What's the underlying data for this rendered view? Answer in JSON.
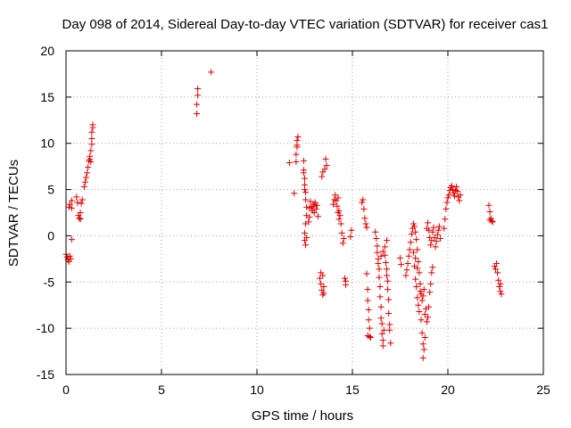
{
  "chart_data": {
    "type": "scatter",
    "title": "Day 098 of 2014, Sidereal Day-to-day VTEC variation (SDTVAR) for receiver cas1",
    "xlabel": "GPS time / hours",
    "ylabel": "SDTVAR / TECUs",
    "xlim": [
      0,
      25
    ],
    "ylim": [
      -15,
      20
    ],
    "xticks": [
      0,
      5,
      10,
      15,
      20,
      25
    ],
    "xtick_labels": [
      "0",
      "5",
      "10",
      "15",
      "20",
      "25"
    ],
    "yticks": [
      -15,
      -10,
      -5,
      0,
      5,
      10,
      15,
      20
    ],
    "ytick_labels": [
      "-15",
      "-10",
      "-5",
      "0",
      "5",
      "10",
      "15",
      "20"
    ],
    "grid": true,
    "marker": "+",
    "color": "#e00000",
    "series": [
      {
        "name": "cas1",
        "points": [
          [
            0.0,
            -2.0
          ],
          [
            0.05,
            -2.3
          ],
          [
            0.1,
            -2.6
          ],
          [
            0.15,
            -2.8
          ],
          [
            0.2,
            -2.2
          ],
          [
            0.25,
            -2.5
          ],
          [
            0.3,
            -0.4
          ],
          [
            0.15,
            3.1
          ],
          [
            0.2,
            3.4
          ],
          [
            0.3,
            3.0
          ],
          [
            0.3,
            3.8
          ],
          [
            0.55,
            4.2
          ],
          [
            0.6,
            3.6
          ],
          [
            0.65,
            2.2
          ],
          [
            0.7,
            1.9
          ],
          [
            0.75,
            2.5
          ],
          [
            0.8,
            3.5
          ],
          [
            0.85,
            3.9
          ],
          [
            0.75,
            1.8
          ],
          [
            0.95,
            5.3
          ],
          [
            1.0,
            5.8
          ],
          [
            1.05,
            6.3
          ],
          [
            1.1,
            6.8
          ],
          [
            1.15,
            7.4
          ],
          [
            1.2,
            8.1
          ],
          [
            1.25,
            8.6
          ],
          [
            1.3,
            9.2
          ],
          [
            1.35,
            9.9
          ],
          [
            1.35,
            10.5
          ],
          [
            1.35,
            11.2
          ],
          [
            1.4,
            11.7
          ],
          [
            1.4,
            12.0
          ],
          [
            1.25,
            8.3
          ],
          [
            1.3,
            8.0
          ],
          [
            6.85,
            13.2
          ],
          [
            6.85,
            14.2
          ],
          [
            6.9,
            15.2
          ],
          [
            6.9,
            15.9
          ],
          [
            7.6,
            17.7
          ],
          [
            11.7,
            7.9
          ],
          [
            11.95,
            4.6
          ],
          [
            12.05,
            8.0
          ],
          [
            12.05,
            8.8
          ],
          [
            12.1,
            9.6
          ],
          [
            12.1,
            10.3
          ],
          [
            12.15,
            10.7
          ],
          [
            12.1,
            9.8
          ],
          [
            12.45,
            8.1
          ],
          [
            12.45,
            7.1
          ],
          [
            12.5,
            6.2
          ],
          [
            12.5,
            5.5
          ],
          [
            12.55,
            4.7
          ],
          [
            12.55,
            3.9
          ],
          [
            12.6,
            3.1
          ],
          [
            12.6,
            2.2
          ],
          [
            12.55,
            1.3
          ],
          [
            12.5,
            0.3
          ],
          [
            12.5,
            -0.5
          ],
          [
            12.55,
            -1.0
          ],
          [
            12.45,
            6.8
          ],
          [
            12.5,
            5.0
          ],
          [
            12.6,
            -0.2
          ],
          [
            12.7,
            1.5
          ],
          [
            12.75,
            3.0
          ],
          [
            12.8,
            3.7
          ],
          [
            12.85,
            3.1
          ],
          [
            12.9,
            2.7
          ],
          [
            12.95,
            3.2
          ],
          [
            13.0,
            2.5
          ],
          [
            13.05,
            3.6
          ],
          [
            13.1,
            2.9
          ],
          [
            13.15,
            3.3
          ],
          [
            13.2,
            2.1
          ],
          [
            12.75,
            2.0
          ],
          [
            13.0,
            3.4
          ],
          [
            13.3,
            -4.6
          ],
          [
            13.35,
            -5.2
          ],
          [
            13.4,
            -5.9
          ],
          [
            13.45,
            -6.4
          ],
          [
            13.5,
            -5.5
          ],
          [
            13.35,
            -4.0
          ],
          [
            13.45,
            -4.3
          ],
          [
            13.5,
            -6.2
          ],
          [
            13.4,
            6.4
          ],
          [
            13.45,
            6.9
          ],
          [
            13.55,
            7.2
          ],
          [
            13.6,
            8.3
          ],
          [
            13.65,
            7.6
          ],
          [
            14.0,
            3.4
          ],
          [
            14.05,
            3.9
          ],
          [
            14.1,
            4.4
          ],
          [
            14.15,
            3.8
          ],
          [
            14.2,
            3.2
          ],
          [
            14.25,
            4.1
          ],
          [
            14.3,
            2.7
          ],
          [
            14.35,
            2.2
          ],
          [
            14.4,
            1.3
          ],
          [
            14.45,
            0.3
          ],
          [
            14.5,
            -0.8
          ],
          [
            14.55,
            -0.3
          ],
          [
            14.25,
            2.5
          ],
          [
            14.3,
            1.8
          ],
          [
            14.6,
            -4.6
          ],
          [
            14.65,
            -4.9
          ],
          [
            14.65,
            -5.3
          ],
          [
            14.9,
            -0.1
          ],
          [
            14.95,
            0.6
          ],
          [
            15.5,
            3.6
          ],
          [
            15.55,
            3.9
          ],
          [
            15.6,
            2.9
          ],
          [
            15.65,
            1.9
          ],
          [
            15.7,
            1.3
          ],
          [
            15.75,
            0.9
          ],
          [
            15.75,
            -4.1
          ],
          [
            15.8,
            -5.8
          ],
          [
            15.8,
            -7.0
          ],
          [
            15.85,
            -8.0
          ],
          [
            15.85,
            -9.1
          ],
          [
            15.9,
            -10.0
          ],
          [
            15.9,
            -10.9
          ],
          [
            15.95,
            -11.0
          ],
          [
            15.8,
            -10.8
          ],
          [
            16.2,
            0.4
          ],
          [
            16.25,
            -0.3
          ],
          [
            16.3,
            -1.1
          ],
          [
            16.3,
            -1.8
          ],
          [
            16.35,
            -2.5
          ],
          [
            16.4,
            -3.6
          ],
          [
            16.4,
            -4.5
          ],
          [
            16.45,
            -5.5
          ],
          [
            16.45,
            -6.6
          ],
          [
            16.5,
            -7.7
          ],
          [
            16.5,
            -8.9
          ],
          [
            16.55,
            -9.5
          ],
          [
            16.55,
            -10.6
          ],
          [
            16.6,
            -11.3
          ],
          [
            16.6,
            -11.9
          ],
          [
            16.65,
            -10.2
          ],
          [
            16.35,
            -3.0
          ],
          [
            16.5,
            -2.2
          ],
          [
            16.6,
            -1.7
          ],
          [
            16.7,
            -1.2
          ],
          [
            16.7,
            -2.1
          ],
          [
            16.75,
            -2.9
          ],
          [
            16.8,
            -3.6
          ],
          [
            16.8,
            -4.3
          ],
          [
            16.85,
            -4.9
          ],
          [
            16.85,
            -5.8
          ],
          [
            16.9,
            -6.9
          ],
          [
            16.9,
            -8.4
          ],
          [
            16.95,
            -9.6
          ],
          [
            16.95,
            -10.2
          ],
          [
            17.0,
            -11.6
          ],
          [
            16.8,
            -0.5
          ],
          [
            17.5,
            -2.4
          ],
          [
            17.55,
            -3.1
          ],
          [
            17.8,
            -4.3
          ],
          [
            17.85,
            -3.7
          ],
          [
            17.9,
            -3.0
          ],
          [
            17.95,
            -2.2
          ],
          [
            18.0,
            -1.5
          ],
          [
            18.05,
            -0.7
          ],
          [
            18.1,
            0.2
          ],
          [
            18.15,
            0.8
          ],
          [
            18.2,
            1.3
          ],
          [
            18.25,
            1.0
          ],
          [
            18.3,
            0.4
          ],
          [
            18.35,
            -0.4
          ],
          [
            18.4,
            -1.5
          ],
          [
            18.45,
            -2.8
          ],
          [
            18.5,
            -4.0
          ],
          [
            18.55,
            -5.2
          ],
          [
            18.6,
            -6.3
          ],
          [
            18.65,
            -7.0
          ],
          [
            18.7,
            -6.5
          ],
          [
            18.75,
            -5.8
          ],
          [
            18.6,
            -9.1
          ],
          [
            18.65,
            -10.5
          ],
          [
            18.7,
            -11.7
          ],
          [
            18.75,
            -12.3
          ],
          [
            18.7,
            -13.2
          ],
          [
            18.8,
            -11.0
          ],
          [
            18.8,
            -8.5
          ],
          [
            18.85,
            -7.9
          ],
          [
            18.9,
            -9.3
          ],
          [
            18.95,
            -8.8
          ],
          [
            19.0,
            -7.7
          ],
          [
            19.05,
            -6.1
          ],
          [
            19.1,
            -5.2
          ],
          [
            19.15,
            -4.0
          ],
          [
            19.2,
            -3.4
          ],
          [
            18.9,
            0.8
          ],
          [
            18.95,
            1.4
          ],
          [
            19.0,
            0.6
          ],
          [
            19.05,
            -0.2
          ],
          [
            19.1,
            -1.0
          ],
          [
            19.15,
            -0.5
          ],
          [
            19.2,
            0.4
          ],
          [
            19.25,
            0.9
          ],
          [
            19.3,
            -0.2
          ],
          [
            19.35,
            -1.2
          ],
          [
            19.4,
            -0.6
          ],
          [
            19.45,
            0.1
          ],
          [
            19.5,
            0.6
          ],
          [
            19.55,
            1.0
          ],
          [
            19.6,
            -0.3
          ],
          [
            18.2,
            -1.8
          ],
          [
            18.25,
            -3.3
          ],
          [
            18.3,
            -4.7
          ],
          [
            18.35,
            -5.5
          ],
          [
            18.4,
            -6.7
          ],
          [
            18.45,
            -7.5
          ],
          [
            18.5,
            -8.2
          ],
          [
            18.55,
            -6.0
          ],
          [
            18.4,
            -3.5
          ],
          [
            18.3,
            -2.4
          ],
          [
            19.8,
            0.8
          ],
          [
            19.85,
            1.8
          ],
          [
            19.9,
            2.9
          ],
          [
            19.95,
            3.6
          ],
          [
            20.0,
            4.1
          ],
          [
            20.05,
            4.4
          ],
          [
            20.1,
            4.9
          ],
          [
            20.15,
            5.2
          ],
          [
            20.2,
            5.4
          ],
          [
            20.25,
            5.0
          ],
          [
            20.3,
            4.6
          ],
          [
            20.35,
            4.3
          ],
          [
            20.4,
            4.9
          ],
          [
            20.45,
            5.3
          ],
          [
            20.5,
            4.8
          ],
          [
            20.55,
            4.2
          ],
          [
            20.6,
            3.8
          ],
          [
            20.65,
            4.4
          ],
          [
            22.15,
            3.3
          ],
          [
            22.2,
            2.6
          ],
          [
            22.25,
            1.9
          ],
          [
            22.3,
            1.6
          ],
          [
            22.35,
            1.5
          ],
          [
            22.2,
            1.7
          ],
          [
            22.45,
            -3.3
          ],
          [
            22.5,
            -3.6
          ],
          [
            22.55,
            -3.0
          ],
          [
            22.6,
            -4.0
          ],
          [
            22.65,
            -4.8
          ],
          [
            22.7,
            -5.5
          ],
          [
            22.75,
            -6.0
          ],
          [
            22.8,
            -6.3
          ],
          [
            22.75,
            -5.2
          ]
        ]
      }
    ]
  }
}
